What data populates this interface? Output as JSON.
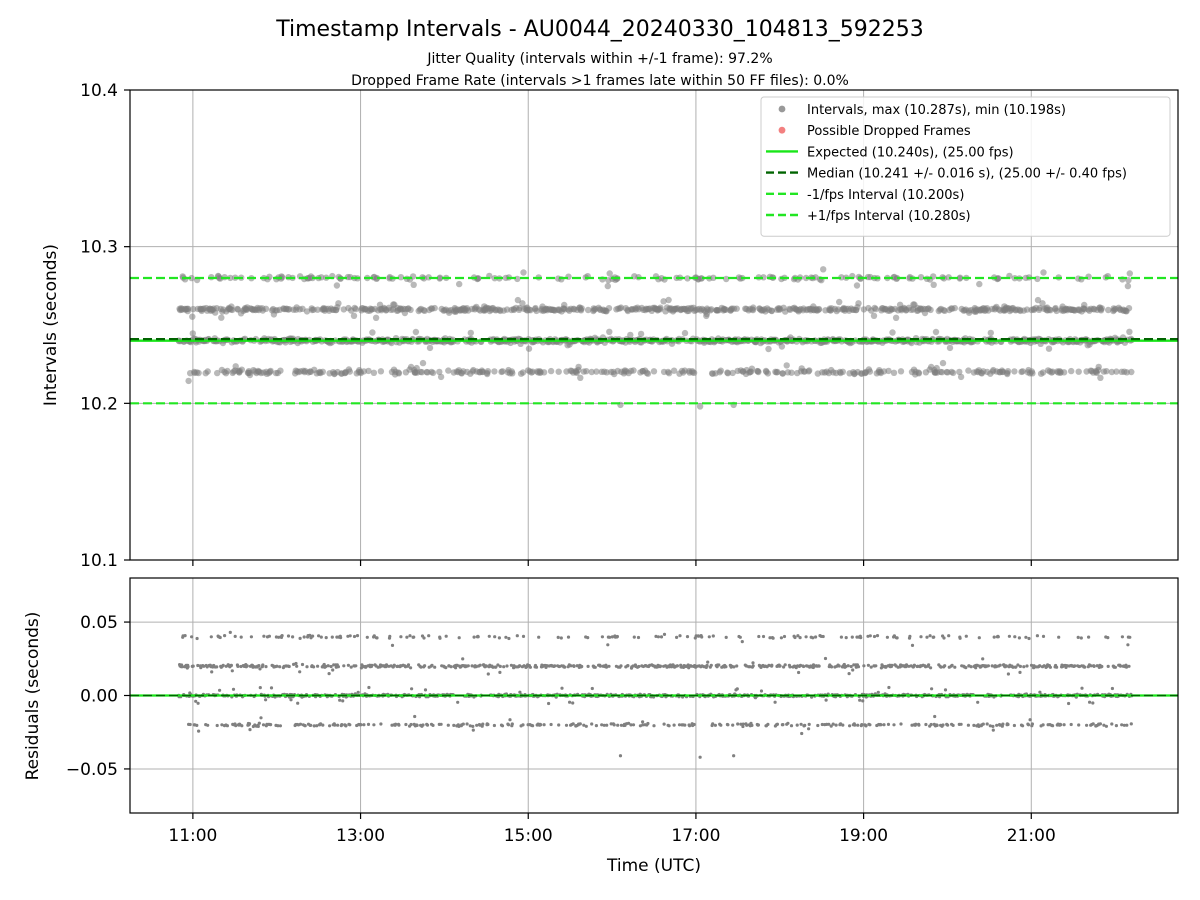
{
  "chart_data": {
    "title": "Timestamp Intervals - AU0044_20240330_104813_592253",
    "subtitle_1": "Jitter Quality (intervals within +/-1 frame): 97.2%",
    "subtitle_2": "Dropped Frame Rate (intervals >1 frames late within 50 FF files): 0.0%",
    "x_range_hours": [
      10.25,
      22.75
    ],
    "x_ticks": [
      {
        "hour": 11,
        "label": "11:00"
      },
      {
        "hour": 13,
        "label": "13:00"
      },
      {
        "hour": 15,
        "label": "15:00"
      },
      {
        "hour": 17,
        "label": "17:00"
      },
      {
        "hour": 19,
        "label": "19:00"
      },
      {
        "hour": 21,
        "label": "21:00"
      }
    ],
    "xlabel": "Time (UTC)",
    "data_span_hours": [
      10.83,
      22.2
    ],
    "colors": {
      "points": "#808080",
      "dropped": "#f06060",
      "expected": "#19e619",
      "median": "#006400",
      "bounds": "#22e622"
    },
    "top": {
      "type": "scatter",
      "ylabel": "Intervals (seconds)",
      "ylim": [
        10.1,
        10.4
      ],
      "y_ticks": [
        {
          "value": 10.1,
          "label": "10.1"
        },
        {
          "value": 10.2,
          "label": "10.2"
        },
        {
          "value": 10.3,
          "label": "10.3"
        },
        {
          "value": 10.4,
          "label": "10.4"
        }
      ],
      "point_levels": [
        10.22,
        10.24,
        10.26,
        10.28
      ],
      "point_level_weights": [
        0.18,
        0.38,
        0.36,
        0.08
      ],
      "interval_max": 10.287,
      "interval_min": 10.198,
      "expected": 10.24,
      "median": 10.241,
      "lower": 10.2,
      "upper": 10.28,
      "legend": [
        {
          "kind": "dot",
          "style": "points",
          "label": "Intervals, max (10.287s), min (10.198s)"
        },
        {
          "kind": "dot",
          "style": "dropped",
          "label": "Possible Dropped Frames"
        },
        {
          "kind": "line",
          "style": "expected",
          "label": "Expected (10.240s), (25.00 fps)"
        },
        {
          "kind": "dash",
          "style": "median",
          "label": "Median (10.241 +/- 0.016 s), (25.00 +/- 0.40 fps)"
        },
        {
          "kind": "dash",
          "style": "bounds",
          "label": "-1/fps Interval (10.200s)"
        },
        {
          "kind": "dash",
          "style": "bounds",
          "label": "+1/fps Interval (10.280s)"
        }
      ]
    },
    "bottom": {
      "type": "scatter",
      "ylabel": "Residuals (seconds)",
      "ylim": [
        -0.08,
        0.08
      ],
      "y_ticks": [
        {
          "value": 0.05,
          "label": "0.05"
        },
        {
          "value": 0.0,
          "label": "0.00"
        },
        {
          "value": -0.05,
          "label": "−0.05"
        }
      ],
      "grid_values": [
        -0.05,
        0.0,
        0.05
      ],
      "point_levels": [
        -0.02,
        0.0,
        0.02,
        0.04
      ],
      "zero_line": 0.0
    }
  }
}
